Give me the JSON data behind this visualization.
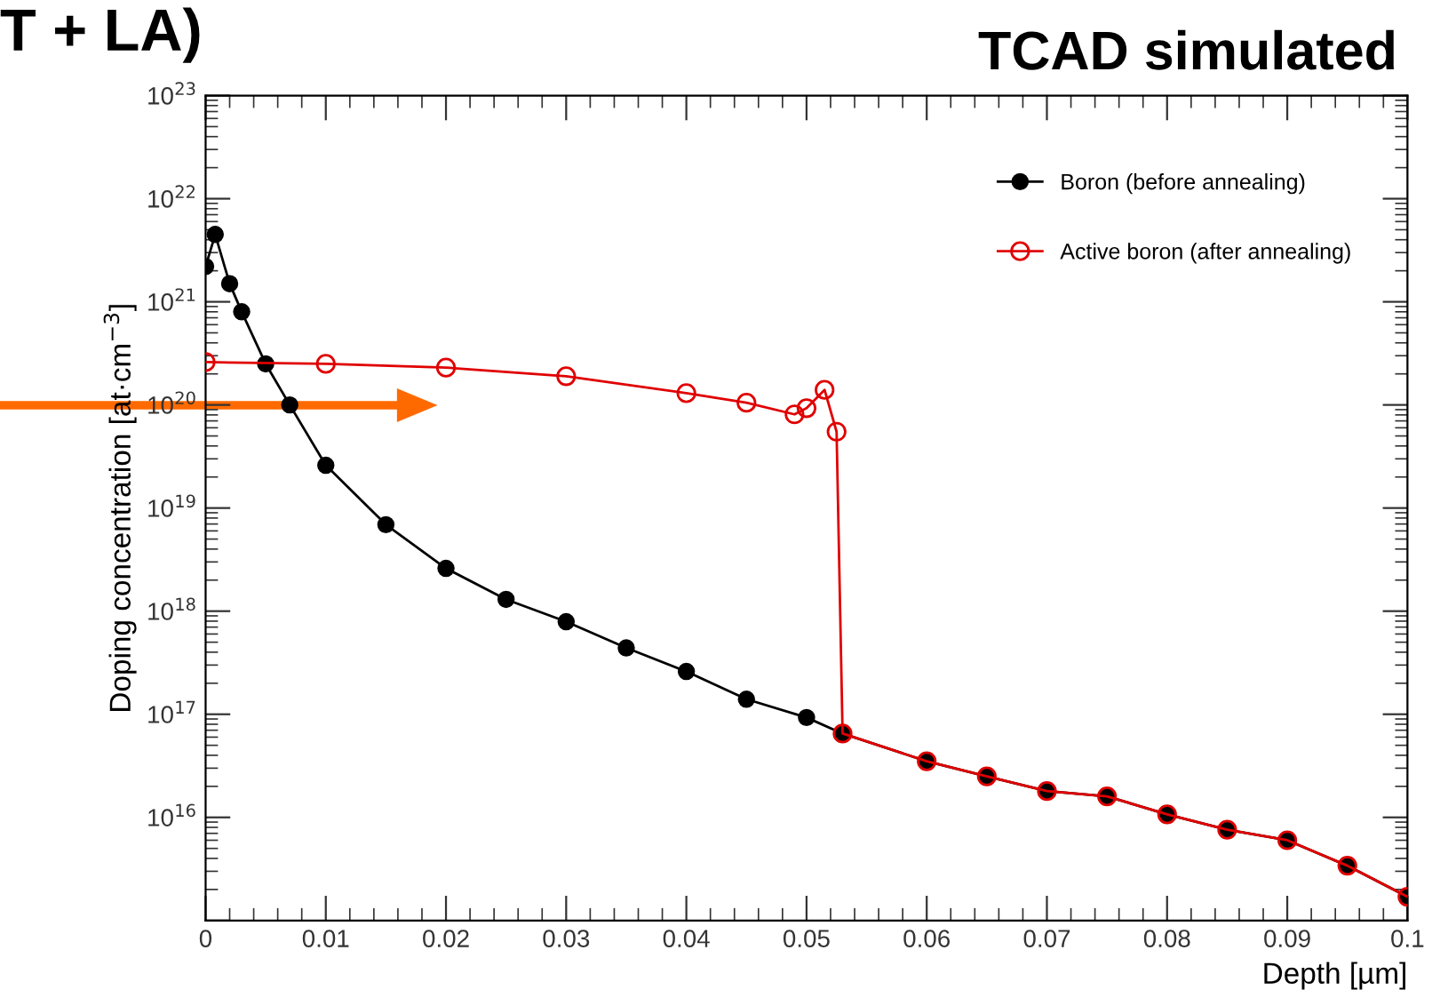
{
  "chart_data": {
    "type": "line",
    "title": "TCAD simulated",
    "xlabel": "Depth [µm]",
    "ylabel": "Doping concentration [at·cm$^{−3}$]",
    "annotations": [
      "T + LA)"
    ],
    "log": "y",
    "xlim": [
      0,
      0.1
    ],
    "ylim": [
      1000000000000000.0,
      1e+23
    ],
    "xticks": [
      0,
      0.01,
      0.02,
      0.03,
      0.04,
      0.05,
      0.06,
      0.07,
      0.08,
      0.09,
      0.1
    ],
    "yticks": [
      {
        "value": 1000000000000000.0,
        "label": null
      },
      {
        "value": 1e+16,
        "label": "10$^{16}$"
      },
      {
        "value": 1e+17,
        "label": "10$^{17}$"
      },
      {
        "value": 1e+18,
        "label": "10$^{18}$"
      },
      {
        "value": 1e+19,
        "label": "10$^{19}$"
      },
      {
        "value": 1e+20,
        "label": "10$^{20}$"
      },
      {
        "value": 1e+21,
        "label": "10$^{21}$"
      },
      {
        "value": 1e+22,
        "label": "10$^{22}$"
      },
      {
        "value": 1e+23,
        "label": "10$^{23}$"
      }
    ],
    "grid": false,
    "legend": "top right",
    "series": [
      {
        "name": "Boron (before annealing)",
        "color": "#000000",
        "marker": "circle",
        "x": [
          0,
          0.0008,
          0.002,
          0.003,
          0.005,
          0.007,
          0.01,
          0.015,
          0.02,
          0.025,
          0.03,
          0.035,
          0.04,
          0.045,
          0.05,
          0.053,
          0.06,
          0.065,
          0.07,
          0.075,
          0.08,
          0.085,
          0.09,
          0.095,
          0.1
        ],
        "values": [
          2.2e+21,
          4.5e+21,
          1.5e+21,
          8e+20,
          2.5e+20,
          1e+20,
          2.6e+19,
          6.9e+18,
          2.6e+18,
          1.3e+18,
          7.9e+17,
          4.4e+17,
          2.6e+17,
          1.4e+17,
          9.3e+16,
          6.5e+16,
          3.5e+16,
          2.5e+16,
          1.8e+16,
          1.6e+16,
          1.07e+16,
          7600000000000000.0,
          6000000000000000.0,
          3400000000000000.0,
          1700000000000000.0
        ]
      },
      {
        "name": "Active boron (after annealing)",
        "color": "#e00000",
        "marker": "circle",
        "x": [
          0,
          0.01,
          0.02,
          0.03,
          0.04,
          0.045,
          0.049,
          0.05,
          0.0515,
          0.0525,
          0.053,
          0.06,
          0.065,
          0.07,
          0.075,
          0.08,
          0.085,
          0.09,
          0.095,
          0.1
        ],
        "values": [
          2.6e+20,
          2.5e+20,
          2.3e+20,
          1.9e+20,
          1.3e+20,
          1.05e+20,
          8.1e+19,
          9.3e+19,
          1.4e+20,
          5.5e+19,
          6.5e+16,
          3.5e+16,
          2.5e+16,
          1.8e+16,
          1.6e+16,
          1.07e+16,
          7600000000000000.0,
          6000000000000000.0,
          3400000000000000.0,
          1700000000000000.0
        ]
      }
    ]
  }
}
